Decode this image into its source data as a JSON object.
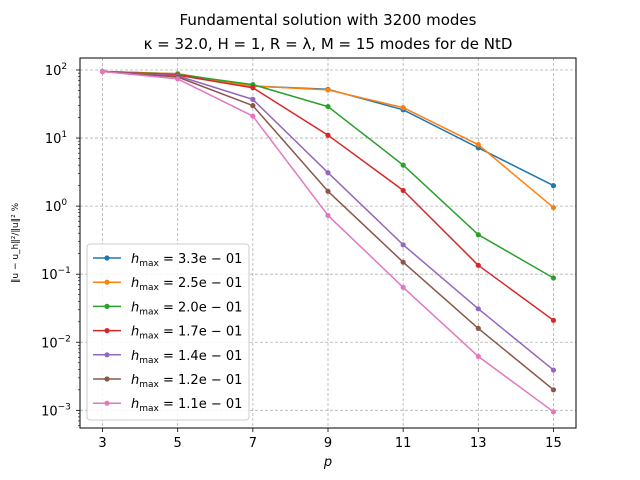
{
  "chart_data": {
    "type": "line",
    "title_line1": "Fundamental solution with 3200 modes",
    "title_line2": "κ = 32.0, H = 1, R = λ, M = 15 modes for de NtD",
    "xlabel": "p",
    "ylabel": "‖u − u_h‖²/‖u‖² %",
    "y_scale": "log",
    "xlim": [
      2.4,
      15.6
    ],
    "ylim": [
      0.00055,
      150
    ],
    "grid": true,
    "legend_position": "lower-left",
    "x": [
      3,
      5,
      7,
      9,
      11,
      13,
      15
    ],
    "x_tick_labels": [
      "3",
      "5",
      "7",
      "9",
      "11",
      "13",
      "15"
    ],
    "y_ticks": [
      0.001,
      0.01,
      0.1,
      1,
      10,
      100
    ],
    "y_tick_labels": [
      {
        "base": "10",
        "exp": "−3"
      },
      {
        "base": "10",
        "exp": "−2"
      },
      {
        "base": "10",
        "exp": "−1"
      },
      {
        "base": "10",
        "exp": "0"
      },
      {
        "base": "10",
        "exp": "1"
      },
      {
        "base": "10",
        "exp": "2"
      }
    ],
    "series": [
      {
        "name": "h_max = 3.3e − 01",
        "legend_value": "3.3e − 01",
        "color": "#1f77b4",
        "values": [
          95,
          88,
          58,
          52,
          26,
          7.2,
          2.0
        ]
      },
      {
        "name": "h_max = 2.5e − 01",
        "legend_value": "2.5e − 01",
        "color": "#ff7f0e",
        "values": [
          95,
          88,
          58,
          51,
          28,
          8.0,
          0.95
        ]
      },
      {
        "name": "h_max = 2.0e − 01",
        "legend_value": "2.0e − 01",
        "color": "#2ca02c",
        "values": [
          95,
          86,
          61,
          29,
          4.0,
          0.38,
          0.088
        ]
      },
      {
        "name": "h_max = 1.7e − 01",
        "legend_value": "1.7e − 01",
        "color": "#d62728",
        "values": [
          95,
          84,
          55,
          11,
          1.7,
          0.135,
          0.021
        ]
      },
      {
        "name": "h_max = 1.4e − 01",
        "legend_value": "1.4e − 01",
        "color": "#9467bd",
        "values": [
          95,
          82,
          37,
          3.1,
          0.27,
          0.031,
          0.0039
        ]
      },
      {
        "name": "h_max = 1.2e − 01",
        "legend_value": "1.2e − 01",
        "color": "#8c564b",
        "values": [
          95,
          79,
          30,
          1.65,
          0.15,
          0.016,
          0.002
        ]
      },
      {
        "name": "h_max = 1.1e − 01",
        "legend_value": "1.1e − 01",
        "color": "#e377c2",
        "values": [
          95,
          74,
          21,
          0.73,
          0.064,
          0.0062,
          0.00095
        ]
      }
    ]
  }
}
